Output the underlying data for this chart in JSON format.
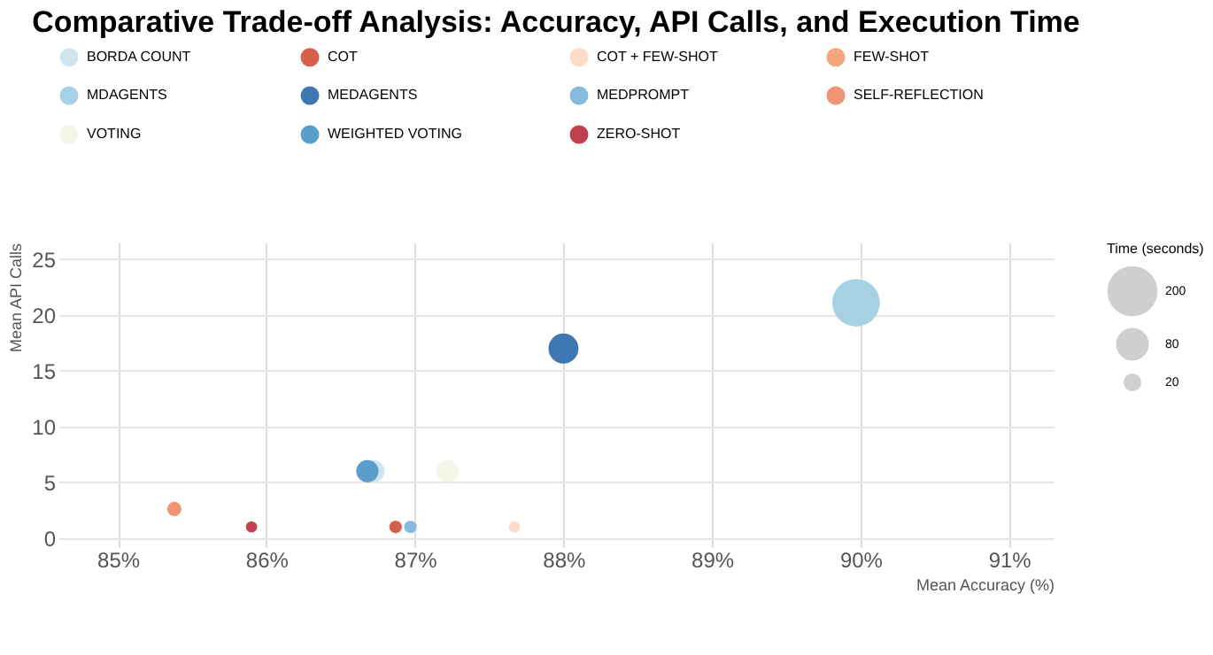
{
  "chart_data": {
    "type": "bubble",
    "title": "Comparative Trade-off Analysis: Accuracy, API Calls, and Execution Time",
    "xlabel": "Mean Accuracy (%)",
    "ylabel": "Mean API Calls",
    "legend_title": "Time (seconds)",
    "size_legend": [
      200,
      80,
      20
    ],
    "xlim": [
      84.6,
      91.3
    ],
    "ylim": [
      -0.8,
      26.5
    ],
    "xticks": [
      {
        "value": 85,
        "label": "85%"
      },
      {
        "value": 86,
        "label": "86%"
      },
      {
        "value": 87,
        "label": "87%"
      },
      {
        "value": 88,
        "label": "88%"
      },
      {
        "value": 89,
        "label": "89%"
      },
      {
        "value": 90,
        "label": "90%"
      },
      {
        "value": 91,
        "label": "91%"
      }
    ],
    "yticks": [
      0,
      5,
      10,
      15,
      20,
      25
    ],
    "grid": true,
    "legend": "top",
    "series": [
      {
        "name": "BORDA COUNT",
        "color": "#d1e5f0",
        "x": [
          86.72
        ],
        "values": [
          6
        ],
        "sizes": [
          44
        ]
      },
      {
        "name": "COT",
        "color": "#d6604d",
        "x": [
          86.87
        ],
        "values": [
          1
        ],
        "sizes": [
          14
        ]
      },
      {
        "name": "COT + FEW-SHOT",
        "color": "#fddbc7",
        "x": [
          87.67
        ],
        "values": [
          1
        ],
        "sizes": [
          11
        ]
      },
      {
        "name": "FEW-SHOT",
        "color": "#f4a582",
        "x": [
          null
        ],
        "values": [
          null
        ],
        "sizes": [
          null
        ]
      },
      {
        "name": "MDAGENTS",
        "color": "#a6d0e4",
        "x": [
          89.97
        ],
        "values": [
          21.1
        ],
        "sizes": [
          200
        ]
      },
      {
        "name": "MEDAGENTS",
        "color": "#3f77b3",
        "x": [
          88.0
        ],
        "values": [
          17
        ],
        "sizes": [
          80
        ]
      },
      {
        "name": "MEDPROMPT",
        "color": "#87bbdd",
        "x": [
          86.97
        ],
        "values": [
          1
        ],
        "sizes": [
          14
        ]
      },
      {
        "name": "SELF-REFLECTION",
        "color": "#ef9474",
        "x": [
          85.38
        ],
        "values": [
          2.6
        ],
        "sizes": [
          18
        ]
      },
      {
        "name": "VOTING",
        "color": "#f5f5e8",
        "x": [
          87.22
        ],
        "values": [
          6
        ],
        "sizes": [
          44
        ]
      },
      {
        "name": "WEIGHTED VOTING",
        "color": "#5a9fcc",
        "x": [
          86.68
        ],
        "values": [
          6
        ],
        "sizes": [
          44
        ]
      },
      {
        "name": "ZERO-SHOT",
        "color": "#c0404f",
        "x": [
          85.9
        ],
        "values": [
          1
        ],
        "sizes": [
          11
        ]
      }
    ]
  }
}
